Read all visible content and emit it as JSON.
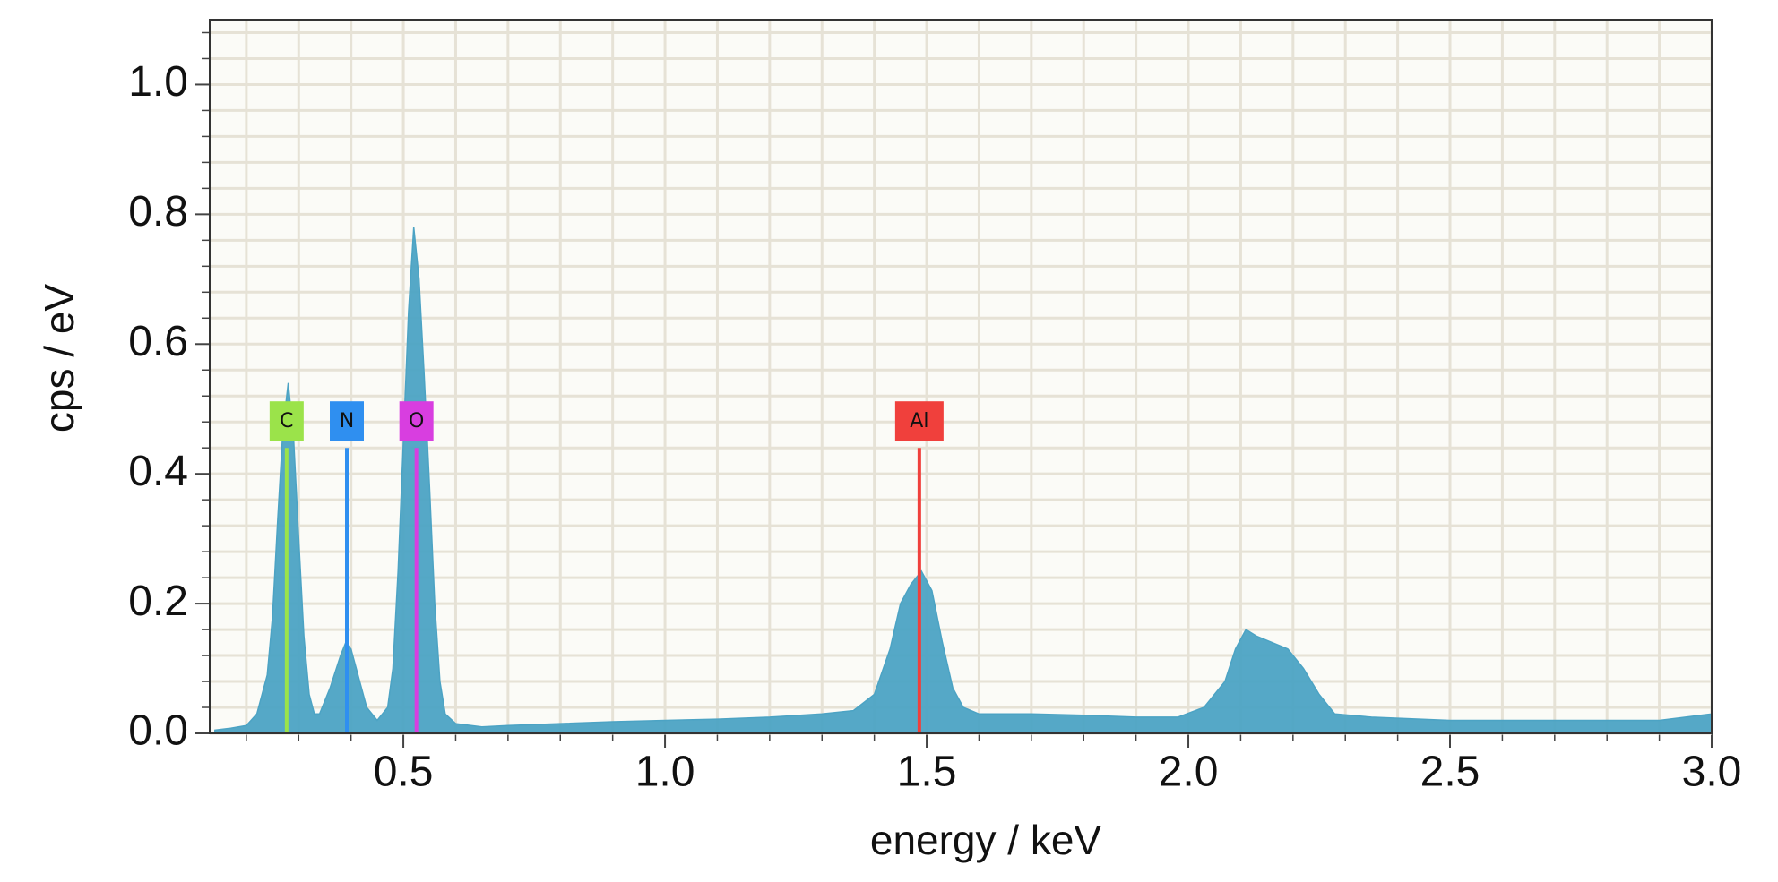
{
  "chart_data": {
    "type": "area",
    "x_label": "energy / keV",
    "y_label": "cps / eV",
    "x": [
      0.14,
      0.17,
      0.2,
      0.22,
      0.24,
      0.25,
      0.26,
      0.27,
      0.28,
      0.29,
      0.3,
      0.31,
      0.32,
      0.33,
      0.34,
      0.36,
      0.38,
      0.39,
      0.4,
      0.41,
      0.43,
      0.45,
      0.47,
      0.48,
      0.49,
      0.5,
      0.51,
      0.52,
      0.53,
      0.54,
      0.55,
      0.56,
      0.57,
      0.58,
      0.6,
      0.65,
      0.7,
      0.8,
      0.9,
      1.0,
      1.1,
      1.2,
      1.3,
      1.36,
      1.4,
      1.43,
      1.45,
      1.47,
      1.49,
      1.51,
      1.53,
      1.55,
      1.57,
      1.6,
      1.7,
      1.8,
      1.9,
      1.98,
      2.03,
      2.07,
      2.09,
      2.11,
      2.13,
      2.16,
      2.19,
      2.22,
      2.25,
      2.28,
      2.35,
      2.5,
      2.7,
      2.9,
      3.0
    ],
    "values": [
      0.005,
      0.008,
      0.012,
      0.03,
      0.09,
      0.18,
      0.33,
      0.47,
      0.54,
      0.46,
      0.3,
      0.15,
      0.06,
      0.03,
      0.03,
      0.07,
      0.12,
      0.14,
      0.13,
      0.1,
      0.04,
      0.02,
      0.04,
      0.1,
      0.25,
      0.45,
      0.65,
      0.78,
      0.7,
      0.55,
      0.38,
      0.2,
      0.08,
      0.03,
      0.015,
      0.01,
      0.012,
      0.015,
      0.018,
      0.02,
      0.022,
      0.025,
      0.03,
      0.035,
      0.06,
      0.13,
      0.2,
      0.23,
      0.25,
      0.22,
      0.14,
      0.07,
      0.04,
      0.03,
      0.03,
      0.028,
      0.025,
      0.025,
      0.04,
      0.08,
      0.13,
      0.16,
      0.15,
      0.14,
      0.13,
      0.1,
      0.06,
      0.03,
      0.025,
      0.02,
      0.02,
      0.02,
      0.03
    ],
    "color": "#4ca3c4",
    "xlim": [
      0.13,
      3.0
    ],
    "ylim": [
      0,
      1.1
    ],
    "xticks": [
      {
        "value": 0.5,
        "label": "0.5"
      },
      {
        "value": 1.0,
        "label": "1.0"
      },
      {
        "value": 1.5,
        "label": "1.5"
      },
      {
        "value": 2.0,
        "label": "2.0"
      },
      {
        "value": 2.5,
        "label": "2.5"
      },
      {
        "value": 3.0,
        "label": "3.0"
      }
    ],
    "yticks": [
      {
        "value": 0,
        "label": "0.0"
      },
      0.2,
      0.4,
      0.6,
      0.8,
      {
        "value": 1.0,
        "label": "1.0"
      }
    ],
    "x_minor_ticks": [
      0.2,
      0.3,
      0.4,
      0.6,
      0.7,
      0.8,
      0.9,
      1.1,
      1.2,
      1.3,
      1.4,
      1.6,
      1.7,
      1.8,
      1.9,
      2.1,
      2.2,
      2.3,
      2.4,
      2.6,
      2.7,
      2.8,
      2.9
    ],
    "y_minor_ticks": [
      0.04,
      0.08,
      0.12,
      0.16,
      0.24,
      0.28,
      0.32,
      0.36,
      0.44,
      0.48,
      0.52,
      0.56,
      0.64,
      0.68,
      0.72,
      0.76,
      0.84,
      0.88,
      0.92,
      0.96,
      1.04,
      1.08
    ],
    "grid": true,
    "markers": [
      {
        "label": "C",
        "energy": 0.277,
        "height": 0.44,
        "color": "#9be34a"
      },
      {
        "label": "N",
        "energy": 0.392,
        "height": 0.44,
        "color": "#2f8ff0"
      },
      {
        "label": "O",
        "energy": 0.525,
        "height": 0.44,
        "color": "#d83ee0"
      },
      {
        "label": "Al",
        "energy": 1.486,
        "height": 0.44,
        "color": "#f0403c"
      }
    ]
  }
}
